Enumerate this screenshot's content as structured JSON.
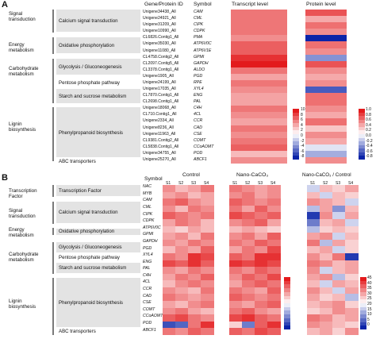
{
  "panelA": {
    "letter": "A",
    "headers": {
      "id": "Gene/Protein ID",
      "symbol": "Symbol",
      "transcript": "Transcript level",
      "protein": "Protein level"
    },
    "categories": [
      {
        "label": "Signal\ntransduction",
        "processes": [
          "Calcium signal transduction"
        ]
      },
      {
        "label": "Energy\nmetabolism",
        "processes": [
          "Oxidative phosphorylation"
        ]
      },
      {
        "label": "Carbohydrate\nmetabolism",
        "processes": [
          "Glycolysis / Gluconeogenesis",
          "Pentose phosphate pathway",
          "Starch and sucrose metabolism"
        ]
      },
      {
        "label": "Lignin\nbiosynthesis",
        "processes": [
          "Phenylpropanoid biosynthesis"
        ]
      },
      {
        "label": "",
        "processes": [
          "ABC transporters"
        ]
      }
    ],
    "rows": [
      [
        "Unigene34438_All",
        "CAM"
      ],
      [
        "Unigene24921_All",
        "CML"
      ],
      [
        "Unigene31209_All",
        "CIPK"
      ],
      [
        "Unigene10990_All",
        "CDPK"
      ],
      [
        "CL6826.Contig1_All",
        "PMA"
      ],
      [
        "Unigene35030_All",
        "ATP6V0C"
      ],
      [
        "Unigene11080_All",
        "ATP6V1E"
      ],
      [
        "CL4758.Contig2_All",
        "GPMI"
      ],
      [
        "CL2097.Contig5_All",
        "GAPDH"
      ],
      [
        "CL3378.Contig1_All",
        "ALDO"
      ],
      [
        "Unigene1905_All",
        "PGD"
      ],
      [
        "Unigene24199_All",
        "RPE"
      ],
      [
        "Unigene17035_All",
        "XYL4"
      ],
      [
        "CL7870.Contig1_All",
        "ENG"
      ],
      [
        "CL2698.Contig1_All",
        "PAL"
      ],
      [
        "Unigene18068_All",
        "C4H"
      ],
      [
        "CL710.Contig1_All",
        "4CL"
      ],
      [
        "Unigene2334_All",
        "CCR"
      ],
      [
        "Unigene8236_All",
        "CAD"
      ],
      [
        "Unigene11963_All",
        "CSE"
      ],
      [
        "CL9381.Contig2_All",
        "COMT"
      ],
      [
        "CL5838.Contig1_All",
        "CCoAOMT"
      ],
      [
        "Unigene34755_All",
        "POD"
      ],
      [
        "Unigene25270_All",
        "ABCF1"
      ]
    ],
    "transcript": [
      6,
      6,
      6,
      6,
      5,
      7,
      7,
      9,
      10,
      6,
      4,
      6,
      5,
      4,
      4,
      6,
      5,
      4,
      6,
      5,
      6,
      7,
      3,
      5
    ],
    "protein": [
      6,
      3,
      5,
      4,
      -8,
      5,
      4,
      -4,
      6,
      4,
      3,
      4,
      -6,
      5,
      5,
      4,
      3,
      5,
      2,
      4,
      3,
      -1,
      -3,
      4
    ],
    "scaleTranscript": {
      "ticks": [
        "10",
        "8",
        "6",
        "4",
        "2",
        "0",
        "-2",
        "-4",
        "-6",
        "-8"
      ]
    },
    "scaleProtein": {
      "ticks": [
        "1.0",
        "0.8",
        "0.6",
        "0.4",
        "0.2",
        "0.0",
        "-0.2",
        "-0.4",
        "-0.6",
        "-0.8"
      ]
    }
  },
  "panelB": {
    "letter": "B",
    "headers": {
      "symbol": "Symbol",
      "control": "Control",
      "nano": "Nano-CaCO₃",
      "ratio": "Nano-CaCO₃ / Control"
    },
    "stages": [
      "S1",
      "S2",
      "S3",
      "S4"
    ],
    "categories": [
      {
        "label": "Transcription\nFactor",
        "processes": [
          "Transcription Factor"
        ]
      },
      {
        "label": "Signal\ntransduction",
        "processes": [
          "Calcium signal transduction"
        ]
      },
      {
        "label": "Energy\nmetabolism",
        "processes": [
          "Oxidative phosphorylation"
        ]
      },
      {
        "label": "Carbohydrate\nmetabolism",
        "processes": [
          "Glycolysis / Gluconeogenesis",
          "Pentose phosphate pathway",
          "Starch and sucrose metabolism"
        ]
      },
      {
        "label": "Lignin\nbiosynthesis",
        "processes": [
          "Phenylpropanoid biosynthesis"
        ]
      },
      {
        "label": "",
        "processes": [
          "ABC transporters"
        ]
      }
    ],
    "symbols": [
      "NAC",
      "MYB",
      "CAM",
      "CML",
      "CIPK",
      "CDPK",
      "ATP6V0C",
      "GPMI",
      "GAPDH",
      "PGD",
      "XYL4",
      "ENG",
      "PAL",
      "C4H",
      "4CL",
      "CCR",
      "CAD",
      "CSE",
      "COMT",
      "CCoAOMT",
      "POD",
      "ABCF1"
    ],
    "control": [
      [
        0.5,
        0.3,
        0.4,
        0.6
      ],
      [
        0.4,
        0.5,
        0.3,
        0.4
      ],
      [
        0.6,
        0.7,
        0.5,
        0.4
      ],
      [
        0.5,
        0.3,
        0.6,
        0.5
      ],
      [
        0.7,
        0.6,
        0.5,
        0.6
      ],
      [
        0.4,
        0.6,
        0.5,
        0.3
      ],
      [
        0.3,
        0.2,
        0.4,
        0.3
      ],
      [
        0.4,
        0.5,
        0.3,
        0.6
      ],
      [
        0.5,
        0.4,
        0.6,
        0.5
      ],
      [
        0.3,
        0.5,
        0.4,
        0.7
      ],
      [
        0.6,
        0.5,
        0.9,
        0.8
      ],
      [
        0.8,
        0.7,
        0.9,
        0.7
      ],
      [
        0.5,
        0.4,
        0.6,
        0.5
      ],
      [
        0.4,
        0.6,
        0.5,
        0.7
      ],
      [
        0.3,
        0.5,
        0.6,
        0.5
      ],
      [
        0.5,
        0.4,
        0.3,
        0.6
      ],
      [
        0.6,
        0.5,
        0.4,
        0.5
      ],
      [
        0.4,
        0.3,
        0.5,
        0.6
      ],
      [
        0.5,
        0.6,
        0.4,
        0.3
      ],
      [
        0.7,
        0.8,
        0.6,
        0.5
      ],
      [
        -0.8,
        -0.7,
        0.6,
        0.9
      ],
      [
        0.6,
        0.5,
        0.7,
        0.6
      ]
    ],
    "nano": [
      [
        0.6,
        0.5,
        0.4,
        0.5
      ],
      [
        0.5,
        0.6,
        0.4,
        0.5
      ],
      [
        0.7,
        0.6,
        0.5,
        0.6
      ],
      [
        0.6,
        0.4,
        0.7,
        0.5
      ],
      [
        0.8,
        0.7,
        0.6,
        0.7
      ],
      [
        0.5,
        0.6,
        0.7,
        0.4
      ],
      [
        0.3,
        0.4,
        0.3,
        0.2
      ],
      [
        0.5,
        0.6,
        0.4,
        0.7
      ],
      [
        0.6,
        0.5,
        0.7,
        0.6
      ],
      [
        0.4,
        0.6,
        0.5,
        0.8
      ],
      [
        0.7,
        0.6,
        0.9,
        0.9
      ],
      [
        0.9,
        0.8,
        0.9,
        0.8
      ],
      [
        0.6,
        0.5,
        0.7,
        0.6
      ],
      [
        0.5,
        0.7,
        0.6,
        0.8
      ],
      [
        0.4,
        0.6,
        0.7,
        0.6
      ],
      [
        0.6,
        0.5,
        0.4,
        0.7
      ],
      [
        0.7,
        0.6,
        0.5,
        0.6
      ],
      [
        0.5,
        0.4,
        0.6,
        0.7
      ],
      [
        0.6,
        0.7,
        0.5,
        0.4
      ],
      [
        0.8,
        0.9,
        0.7,
        0.6
      ],
      [
        0.2,
        -0.6,
        0.7,
        0.9
      ],
      [
        0.7,
        0.6,
        0.8,
        0.7
      ]
    ],
    "ratio": [
      [
        -0.2,
        0.3,
        0.2,
        0.4
      ],
      [
        0.3,
        -0.2,
        0.3,
        0.2
      ],
      [
        0.5,
        0.4,
        0.3,
        -0.2
      ],
      [
        -0.3,
        0.4,
        -0.5,
        0.3
      ],
      [
        -0.9,
        0.5,
        -0.2,
        0.4
      ],
      [
        -0.6,
        0.3,
        0.4,
        -0.2
      ],
      [
        -0.3,
        0.2,
        0.3,
        0.2
      ],
      [
        0.4,
        0.5,
        -0.2,
        0.3
      ],
      [
        0.6,
        -0.3,
        0.4,
        0.2
      ],
      [
        0.3,
        0.4,
        -0.2,
        0.2
      ],
      [
        0.5,
        0.3,
        0.6,
        -0.9
      ],
      [
        0.6,
        0.5,
        0.3,
        0.4
      ],
      [
        0.5,
        -0.2,
        0.3,
        0.4
      ],
      [
        0.4,
        0.5,
        -0.3,
        0.2
      ],
      [
        0.3,
        -0.2,
        0.4,
        0.3
      ],
      [
        0.5,
        0.3,
        -0.2,
        0.4
      ],
      [
        0.4,
        0.2,
        0.3,
        -0.3
      ],
      [
        0.3,
        0.4,
        0.5,
        0.2
      ],
      [
        0.2,
        0.3,
        0.5,
        0.4
      ],
      [
        0.6,
        0.5,
        0.3,
        0.4
      ],
      [
        0.5,
        0.4,
        0.3,
        0.2
      ],
      [
        0.3,
        0.4,
        0.2,
        0.5
      ]
    ],
    "scaleRatio": {
      "ticks": [
        "45",
        "40",
        "35",
        "30",
        "25",
        "20",
        "15",
        "10",
        "5",
        "0"
      ]
    }
  },
  "colors": {
    "red": "#e31a1c",
    "white": "#ffffff",
    "blue": "#0b24a8",
    "band": "#e3e3e3",
    "bar": "#7a7a7a"
  }
}
